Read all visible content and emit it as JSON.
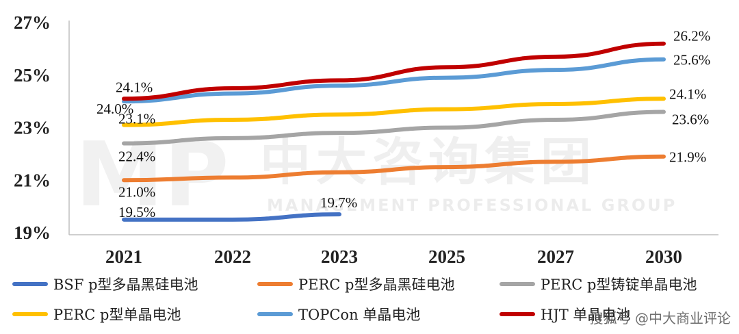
{
  "chart_data": {
    "type": "line",
    "categories": [
      "2021",
      "2022",
      "2023",
      "2025",
      "2027",
      "2030"
    ],
    "y_ticks": [
      "19%",
      "21%",
      "23%",
      "25%",
      "27%"
    ],
    "ylim": [
      19,
      27
    ],
    "grid": false,
    "legend_position": "bottom",
    "series": [
      {
        "name": "BSF p型多晶黑硅电池",
        "color": "#4472C4",
        "values": [
          19.5,
          19.5,
          19.7,
          null,
          null,
          null
        ],
        "labels": {
          "0": "19.5%",
          "2": "19.7%"
        }
      },
      {
        "name": "PERC p型多晶黑硅电池",
        "color": "#ED7D31",
        "values": [
          21.0,
          21.1,
          21.3,
          21.5,
          21.7,
          21.9
        ],
        "labels": {
          "0": "21.0%",
          "5": "21.9%"
        }
      },
      {
        "name": "PERC p型铸锭单晶电池",
        "color": "#A5A5A5",
        "values": [
          22.4,
          22.6,
          22.8,
          23.0,
          23.3,
          23.6
        ],
        "labels": {
          "0": "22.4%",
          "5": "23.6%"
        }
      },
      {
        "name": "PERC p型单晶电池",
        "color": "#FFC000",
        "values": [
          23.1,
          23.3,
          23.5,
          23.7,
          23.9,
          24.1
        ],
        "labels": {
          "0": "23.1%",
          "5": "24.1%"
        }
      },
      {
        "name": "TOPCon 单晶电池",
        "color": "#5B9BD5",
        "values": [
          24.0,
          24.3,
          24.6,
          24.9,
          25.2,
          25.6
        ],
        "labels": {
          "0": "24.0%",
          "5": "25.6%"
        }
      },
      {
        "name": "HJT 单晶电池",
        "color": "#C00000",
        "values": [
          24.1,
          24.5,
          24.8,
          25.3,
          25.7,
          26.2
        ],
        "labels": {
          "0": "24.1%",
          "5": "26.2%"
        }
      }
    ]
  },
  "watermark": {
    "big": "中大咨询集团",
    "small": "MANAGEMENT PROFESSIONAL GROUP",
    "logo": "MP"
  },
  "footer": "搜狐号 @中大商业评论"
}
